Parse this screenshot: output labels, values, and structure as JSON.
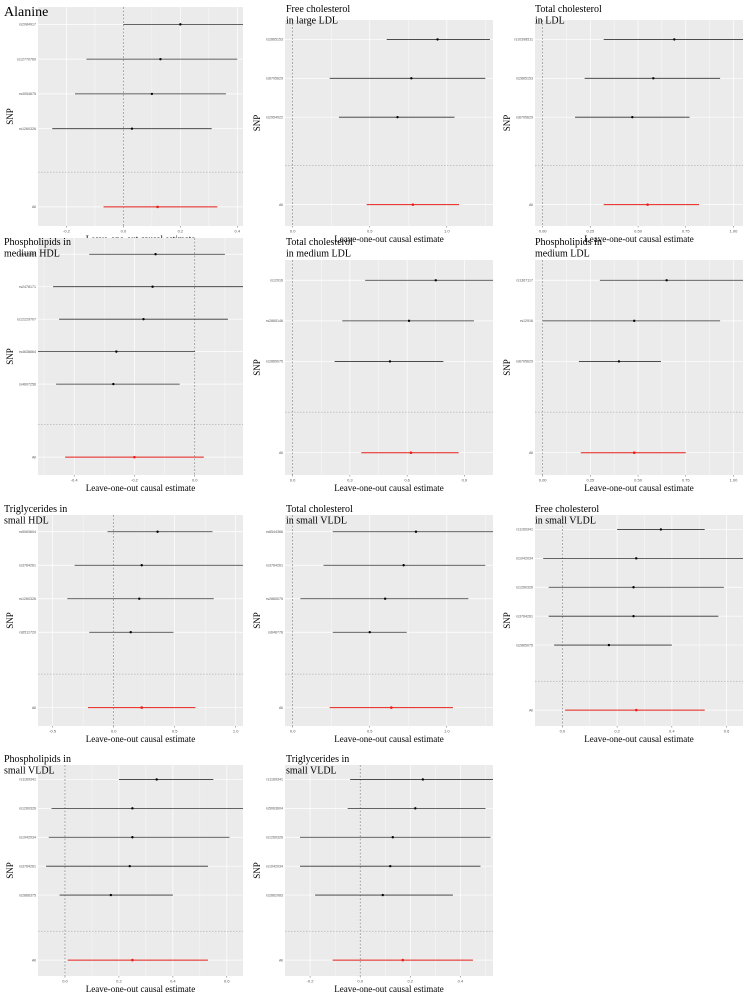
{
  "figure": {
    "xlabel": "Leave-one-out causal estimate",
    "ylabel": "SNP",
    "colors": {
      "panel_bg": "#ebebeb",
      "grid": "#ffffff",
      "snp_line": "#333333",
      "all_line": "#e8201a",
      "ref_line": "#777777"
    }
  },
  "chart_data": [
    {
      "type": "forest",
      "title_lines": [
        "Alanine"
      ],
      "xticks": [
        -0.2,
        0.0,
        0.2,
        0.4
      ],
      "xtick_labels": [
        "-0.2",
        "0.0",
        "0.2",
        "0.4"
      ],
      "xlim": [
        -0.3,
        0.42
      ],
      "rows": [
        {
          "label": "rs2084917",
          "est": 0.2,
          "lo": 0.0,
          "hi": 0.42
        },
        {
          "label": "rs12770769",
          "est": 0.13,
          "lo": -0.13,
          "hi": 0.4
        },
        {
          "label": "rs4054675",
          "est": 0.1,
          "lo": -0.17,
          "hi": 0.36
        },
        {
          "label": "rs1260326",
          "est": 0.03,
          "lo": -0.25,
          "hi": 0.31
        }
      ],
      "all": {
        "label": "All",
        "est": 0.12,
        "lo": -0.07,
        "hi": 0.33
      }
    },
    {
      "type": "forest",
      "title_lines": [
        "Free cholesterol",
        "in large LDL"
      ],
      "xticks": [
        0.0,
        0.5,
        1.0
      ],
      "xtick_labels": [
        "0.0",
        "0.5",
        "1.0"
      ],
      "xlim": [
        -0.05,
        1.3
      ],
      "rows": [
        {
          "label": "rs2865153",
          "est": 0.94,
          "lo": 0.61,
          "hi": 1.28
        },
        {
          "label": "rs6705629",
          "est": 0.77,
          "lo": 0.24,
          "hi": 1.25
        },
        {
          "label": "rs2954022",
          "est": 0.68,
          "lo": 0.3,
          "hi": 1.05
        }
      ],
      "all": {
        "label": "All",
        "est": 0.78,
        "lo": 0.48,
        "hi": 1.08
      }
    },
    {
      "type": "forest",
      "title_lines": [
        "Total cholesterol",
        "in LDL"
      ],
      "xticks": [
        0.0,
        0.25,
        0.5,
        0.75,
        1.0
      ],
      "xtick_labels": [
        "0.00",
        "0.25",
        "0.50",
        "0.75",
        "1.00"
      ],
      "xlim": [
        -0.04,
        1.05
      ],
      "rows": [
        {
          "label": "rs10398511",
          "est": 0.69,
          "lo": 0.32,
          "hi": 1.05
        },
        {
          "label": "rs2865153",
          "est": 0.58,
          "lo": 0.22,
          "hi": 0.93
        },
        {
          "label": "rs6705629",
          "est": 0.47,
          "lo": 0.17,
          "hi": 0.77
        }
      ],
      "all": {
        "label": "All",
        "est": 0.55,
        "lo": 0.32,
        "hi": 0.82
      }
    },
    {
      "type": "forest",
      "title_lines": [
        "Phospholipids in",
        "medium HDL"
      ],
      "xticks": [
        -0.4,
        -0.2,
        0.0
      ],
      "xtick_labels": [
        "-0.4",
        "-0.2",
        "0.0"
      ],
      "xlim": [
        -0.52,
        0.16
      ],
      "rows": [
        {
          "label": "rs6071865",
          "est": -0.13,
          "lo": -0.35,
          "hi": 0.1
        },
        {
          "label": "rs2478171",
          "est": -0.14,
          "lo": -0.47,
          "hi": 0.16
        },
        {
          "label": "rs12229707",
          "est": -0.17,
          "lo": -0.45,
          "hi": 0.11
        },
        {
          "label": "rs4638664",
          "est": -0.26,
          "lo": -0.52,
          "hi": 0.0
        },
        {
          "label": "rs4607256",
          "est": -0.27,
          "lo": -0.46,
          "hi": -0.05
        }
      ],
      "all": {
        "label": "All",
        "est": -0.2,
        "lo": -0.43,
        "hi": 0.03
      }
    },
    {
      "type": "forest",
      "title_lines": [
        "Total cholesterol",
        "in medium LDL"
      ],
      "xticks": [
        0.0,
        0.3,
        0.6,
        0.9
      ],
      "xtick_labels": [
        "0.0",
        "0.3",
        "0.6",
        "0.9"
      ],
      "xlim": [
        -0.04,
        1.05
      ],
      "rows": [
        {
          "label": "rs12916",
          "est": 0.75,
          "lo": 0.38,
          "hi": 1.05
        },
        {
          "label": "rs2865146",
          "est": 0.61,
          "lo": 0.26,
          "hi": 0.95
        },
        {
          "label": "rs2865075",
          "est": 0.51,
          "lo": 0.22,
          "hi": 0.79
        }
      ],
      "all": {
        "label": "All",
        "est": 0.62,
        "lo": 0.36,
        "hi": 0.87
      }
    },
    {
      "type": "forest",
      "title_lines": [
        "Phospholipids in",
        "medium LDL"
      ],
      "xticks": [
        0.0,
        0.25,
        0.5,
        0.75,
        1.0
      ],
      "xtick_labels": [
        "0.00",
        "0.25",
        "0.50",
        "0.75",
        "1.00"
      ],
      "xlim": [
        -0.04,
        1.05
      ],
      "rows": [
        {
          "label": "rs1367117",
          "est": 0.65,
          "lo": 0.3,
          "hi": 1.05
        },
        {
          "label": "rs12916",
          "est": 0.48,
          "lo": 0.0,
          "hi": 0.93
        },
        {
          "label": "rs6705629",
          "est": 0.4,
          "lo": 0.19,
          "hi": 0.62
        }
      ],
      "all": {
        "label": "All",
        "est": 0.48,
        "lo": 0.2,
        "hi": 0.75
      }
    },
    {
      "type": "forest",
      "title_lines": [
        "Triglycerides in",
        "small HDL"
      ],
      "xticks": [
        -0.5,
        0.0,
        0.5,
        1.0
      ],
      "xtick_labels": [
        "-0.5",
        "0.0",
        "0.5",
        "1.0"
      ],
      "xlim": [
        -0.62,
        1.06
      ],
      "rows": [
        {
          "label": "rs5063604",
          "est": 0.36,
          "lo": -0.05,
          "hi": 0.81
        },
        {
          "label": "rs3764261",
          "est": 0.23,
          "lo": -0.32,
          "hi": 1.06
        },
        {
          "label": "rs1260326",
          "est": 0.21,
          "lo": -0.38,
          "hi": 0.82
        },
        {
          "label": "rs6511720",
          "est": 0.14,
          "lo": -0.2,
          "hi": 0.49
        }
      ],
      "all": {
        "label": "All",
        "est": 0.23,
        "lo": -0.21,
        "hi": 0.67
      }
    },
    {
      "type": "forest",
      "title_lines": [
        "Total cholesterol",
        "in small VLDL"
      ],
      "xticks": [
        0.0,
        0.5,
        1.0
      ],
      "xtick_labels": [
        "0.0",
        "0.5",
        "1.0"
      ],
      "xlim": [
        -0.05,
        1.3
      ],
      "rows": [
        {
          "label": "rs6544366",
          "est": 0.8,
          "lo": 0.26,
          "hi": 1.3
        },
        {
          "label": "rs3764261",
          "est": 0.72,
          "lo": 0.2,
          "hi": 1.25
        },
        {
          "label": "rs2865075",
          "est": 0.6,
          "lo": 0.05,
          "hi": 1.14
        },
        {
          "label": "rs646776",
          "est": 0.5,
          "lo": 0.26,
          "hi": 0.74
        }
      ],
      "all": {
        "label": "All",
        "est": 0.64,
        "lo": 0.24,
        "hi": 1.04
      }
    },
    {
      "type": "forest",
      "title_lines": [
        "Free cholesterol",
        "in small VLDL"
      ],
      "xticks": [
        0.0,
        0.2,
        0.4,
        0.6
      ],
      "xtick_labels": [
        "0.0",
        "0.2",
        "0.4",
        "0.6"
      ],
      "xlim": [
        -0.1,
        0.66
      ],
      "rows": [
        {
          "label": "rs1169341",
          "est": 0.36,
          "lo": 0.2,
          "hi": 0.52
        },
        {
          "label": "rs1042034",
          "est": 0.27,
          "lo": -0.07,
          "hi": 0.66
        },
        {
          "label": "rs1260326",
          "est": 0.26,
          "lo": -0.05,
          "hi": 0.59
        },
        {
          "label": "rs3764261",
          "est": 0.26,
          "lo": -0.05,
          "hi": 0.57
        },
        {
          "label": "rs2865075",
          "est": 0.17,
          "lo": -0.03,
          "hi": 0.4
        }
      ],
      "all": {
        "label": "All",
        "est": 0.27,
        "lo": 0.01,
        "hi": 0.52
      }
    },
    {
      "type": "forest",
      "title_lines": [
        "Phospholipids in",
        "small VLDL"
      ],
      "xticks": [
        0.0,
        0.2,
        0.4,
        0.6
      ],
      "xtick_labels": [
        "0.0",
        "0.2",
        "0.4",
        "0.6"
      ],
      "xlim": [
        -0.1,
        0.66
      ],
      "rows": [
        {
          "label": "rs1169341",
          "est": 0.34,
          "lo": 0.2,
          "hi": 0.55
        },
        {
          "label": "rs1260326",
          "est": 0.25,
          "lo": -0.05,
          "hi": 0.66
        },
        {
          "label": "rs1042034",
          "est": 0.25,
          "lo": -0.06,
          "hi": 0.61
        },
        {
          "label": "rs3764261",
          "est": 0.24,
          "lo": -0.07,
          "hi": 0.53
        },
        {
          "label": "rs2866375",
          "est": 0.17,
          "lo": -0.02,
          "hi": 0.4
        }
      ],
      "all": {
        "label": "All",
        "est": 0.25,
        "lo": 0.01,
        "hi": 0.53
      }
    },
    {
      "type": "forest",
      "title_lines": [
        "Triglycerides in",
        "small VLDL"
      ],
      "xticks": [
        -0.2,
        0.0,
        0.2,
        0.4
      ],
      "xtick_labels": [
        "-0.2",
        "0.0",
        "0.2",
        "0.4"
      ],
      "xlim": [
        -0.3,
        0.53
      ],
      "rows": [
        {
          "label": "rs1169341",
          "est": 0.25,
          "lo": -0.04,
          "hi": 0.53
        },
        {
          "label": "rs5063604",
          "est": 0.22,
          "lo": -0.05,
          "hi": 0.5
        },
        {
          "label": "rs1260326",
          "est": 0.13,
          "lo": -0.24,
          "hi": 0.52
        },
        {
          "label": "rs1042034",
          "est": 0.12,
          "lo": -0.24,
          "hi": 0.48
        },
        {
          "label": "rs2862083",
          "est": 0.09,
          "lo": -0.18,
          "hi": 0.37
        }
      ],
      "all": {
        "label": "All",
        "est": 0.17,
        "lo": -0.11,
        "hi": 0.45
      }
    }
  ]
}
